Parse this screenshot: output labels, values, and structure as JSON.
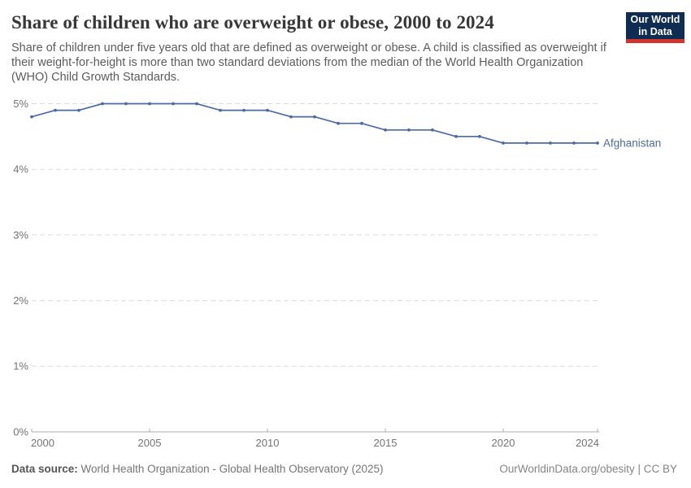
{
  "header": {
    "title": "Share of children who are overweight or obese, 2000 to 2024",
    "subtitle": "Share of children under five years old that are defined as overweight or obese. A child is classified as overweight if their weight-for-height is more than two standard deviations from the median of the World Health Organization (WHO) Child Growth Standards.",
    "logo": {
      "line1": "Our World",
      "line2": "in Data",
      "bg_color": "#0f2d52",
      "accent_color": "#d2352b"
    }
  },
  "chart_data": {
    "type": "line",
    "title": "Share of children who are overweight or obese, 2000 to 2024",
    "xlabel": "",
    "ylabel": "",
    "xlim": [
      2000,
      2024
    ],
    "ylim": [
      0,
      5
    ],
    "grid": "horizontal-dashed",
    "legend_position": "end-of-line-label",
    "x": [
      2000,
      2001,
      2002,
      2003,
      2004,
      2005,
      2006,
      2007,
      2008,
      2009,
      2010,
      2011,
      2012,
      2013,
      2014,
      2015,
      2016,
      2017,
      2018,
      2019,
      2020,
      2021,
      2022,
      2023,
      2024
    ],
    "series": [
      {
        "name": "Afghanistan",
        "color": "#4c6ba4",
        "values": [
          4.8,
          4.9,
          4.9,
          5.0,
          5.0,
          5.0,
          5.0,
          5.0,
          4.9,
          4.9,
          4.9,
          4.8,
          4.8,
          4.7,
          4.7,
          4.6,
          4.6,
          4.6,
          4.5,
          4.5,
          4.4,
          4.4,
          4.4,
          4.4,
          4.4
        ]
      }
    ],
    "x_ticks": [
      {
        "value": 2000,
        "label": "2000"
      },
      {
        "value": 2005,
        "label": "2005"
      },
      {
        "value": 2010,
        "label": "2010"
      },
      {
        "value": 2015,
        "label": "2015"
      },
      {
        "value": 2020,
        "label": "2020"
      },
      {
        "value": 2024,
        "label": "2024"
      }
    ],
    "y_ticks": [
      {
        "value": 0,
        "label": "0%"
      },
      {
        "value": 1,
        "label": "1%"
      },
      {
        "value": 2,
        "label": "2%"
      },
      {
        "value": 3,
        "label": "3%"
      },
      {
        "value": 4,
        "label": "4%"
      },
      {
        "value": 5,
        "label": "5%"
      }
    ]
  },
  "footer": {
    "source_label": "Data source:",
    "source_text": "World Health Organization - Global Health Observatory (2025)",
    "link_text": "OurWorldinData.org/obesity | CC BY"
  }
}
